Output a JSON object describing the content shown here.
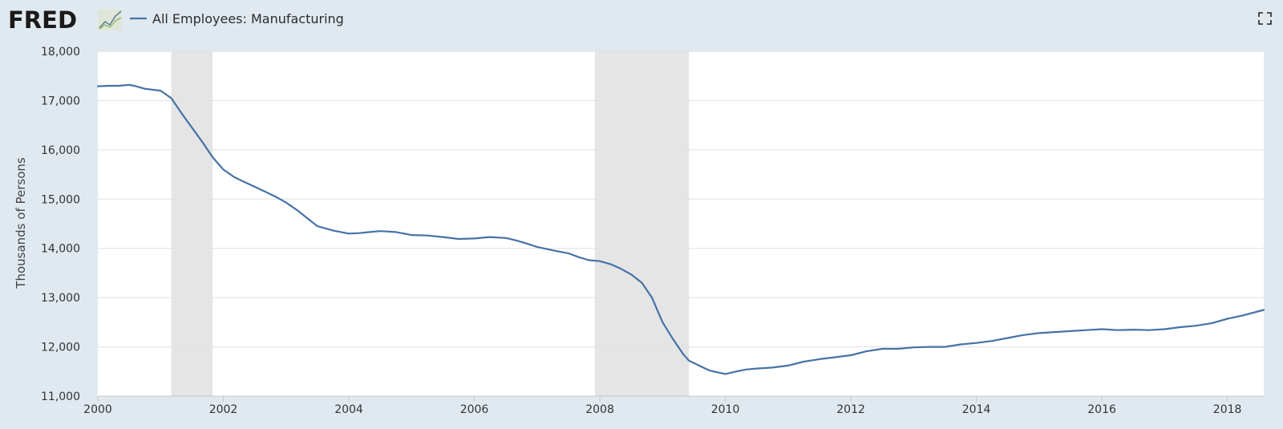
{
  "header": {
    "logo_text": "FRED",
    "series_title": "All Employees: Manufacturing"
  },
  "icons": {
    "logo_graph": "line-graph-icon",
    "fullscreen": "fullscreen-icon"
  },
  "colors": {
    "background": "#e1e9f0",
    "plot_background": "#ffffff",
    "series_line": "#4572a7",
    "recession_band": "#e5e5e5",
    "grid": "#e0e0e0"
  },
  "chart_data": {
    "type": "line",
    "title": "",
    "ylabel": "Thousands of Persons",
    "xlabel": "",
    "ylim": [
      11000,
      18000
    ],
    "xlim": [
      2000.0,
      2018.58
    ],
    "grid": true,
    "yticks": [
      11000,
      12000,
      13000,
      14000,
      15000,
      16000,
      17000,
      18000
    ],
    "ytick_labels": [
      "11,000",
      "12,000",
      "13,000",
      "14,000",
      "15,000",
      "16,000",
      "17,000",
      "18,000"
    ],
    "xticks": [
      2000,
      2002,
      2004,
      2006,
      2008,
      2010,
      2012,
      2014,
      2016,
      2018
    ],
    "xtick_labels": [
      "2000",
      "2002",
      "2004",
      "2006",
      "2008",
      "2010",
      "2012",
      "2014",
      "2016",
      "2018"
    ],
    "recessions": [
      {
        "start": 2001.17,
        "end": 2001.83
      },
      {
        "start": 2007.92,
        "end": 2009.42
      }
    ],
    "series": [
      {
        "name": "All Employees: Manufacturing",
        "x": [
          2000.0,
          2000.17,
          2000.33,
          2000.5,
          2000.58,
          2000.75,
          2001.0,
          2001.17,
          2001.33,
          2001.5,
          2001.67,
          2001.83,
          2002.0,
          2002.17,
          2002.33,
          2002.5,
          2002.67,
          2002.83,
          2003.0,
          2003.17,
          2003.33,
          2003.5,
          2003.75,
          2004.0,
          2004.17,
          2004.33,
          2004.5,
          2004.75,
          2005.0,
          2005.25,
          2005.5,
          2005.75,
          2006.0,
          2006.25,
          2006.5,
          2006.67,
          2006.83,
          2007.0,
          2007.25,
          2007.5,
          2007.67,
          2007.83,
          2008.0,
          2008.17,
          2008.33,
          2008.5,
          2008.67,
          2008.83,
          2009.0,
          2009.17,
          2009.33,
          2009.42,
          2009.58,
          2009.75,
          2010.0,
          2010.17,
          2010.33,
          2010.5,
          2010.75,
          2011.0,
          2011.25,
          2011.5,
          2011.75,
          2012.0,
          2012.25,
          2012.5,
          2012.75,
          2013.0,
          2013.25,
          2013.5,
          2013.75,
          2014.0,
          2014.25,
          2014.5,
          2014.75,
          2015.0,
          2015.25,
          2015.5,
          2015.75,
          2016.0,
          2016.25,
          2016.5,
          2016.75,
          2017.0,
          2017.25,
          2017.5,
          2017.75,
          2018.0,
          2018.25,
          2018.58
        ],
        "values": [
          17290,
          17300,
          17300,
          17320,
          17300,
          17240,
          17200,
          17050,
          16750,
          16450,
          16150,
          15850,
          15600,
          15450,
          15350,
          15250,
          15150,
          15050,
          14930,
          14780,
          14620,
          14450,
          14360,
          14300,
          14310,
          14330,
          14350,
          14330,
          14270,
          14260,
          14230,
          14190,
          14200,
          14230,
          14210,
          14160,
          14100,
          14030,
          13960,
          13900,
          13820,
          13760,
          13740,
          13680,
          13590,
          13470,
          13300,
          13000,
          12500,
          12150,
          11850,
          11720,
          11620,
          11520,
          11450,
          11500,
          11540,
          11560,
          11580,
          11620,
          11700,
          11750,
          11790,
          11830,
          11910,
          11960,
          11960,
          11990,
          12000,
          12000,
          12050,
          12080,
          12120,
          12180,
          12240,
          12280,
          12300,
          12320,
          12340,
          12360,
          12340,
          12350,
          12340,
          12360,
          12400,
          12430,
          12480,
          12570,
          12640,
          12750
        ]
      }
    ]
  }
}
